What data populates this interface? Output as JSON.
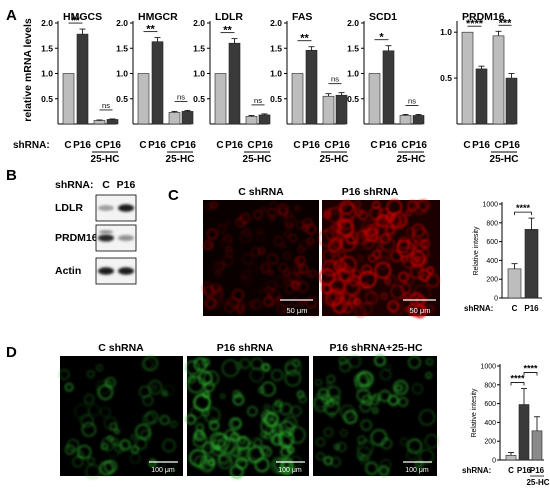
{
  "panel_labels": [
    "A",
    "B",
    "C",
    "D"
  ],
  "panel_a": {
    "ylabel": "relative mRNA levels",
    "row_label": "shRNA:",
    "bar_labels": [
      "C",
      "P16",
      "C",
      "P16"
    ],
    "treatment_label": "25-HC",
    "colors": {
      "control": "#bdbdbd",
      "knockdown": "#3a3a3a"
    }
  },
  "panel_b": {
    "row_label": "shRNA:",
    "lane_labels": [
      "C",
      "P16"
    ],
    "bands": [
      {
        "label": "LDLR",
        "intensity": [
          0.35,
          0.95
        ]
      },
      {
        "label": "PRDM16",
        "intensity": [
          0.9,
          0.4
        ]
      },
      {
        "label": "Actin",
        "intensity": [
          0.95,
          0.95
        ]
      }
    ]
  },
  "panel_c": {
    "image_titles": [
      "C shRNA",
      "P16 shRNA"
    ],
    "scale_bar": "50 μm",
    "stain_color": "#d40000"
  },
  "panel_d": {
    "image_titles": [
      "C shRNA",
      "P16 shRNA",
      "P16 shRNA+25-HC"
    ],
    "scale_bar": "100 μm",
    "stain_color": "#2fb52f"
  },
  "chart_data": [
    {
      "type": "bar",
      "panel": "A",
      "title": "HMGCS",
      "categories": [
        "C",
        "P16",
        "C 25-HC",
        "P16 25-HC"
      ],
      "values": [
        1.0,
        1.78,
        0.07,
        0.09
      ],
      "errors": [
        0,
        0.1,
        0.01,
        0.01
      ],
      "ylim": [
        0,
        2.0
      ],
      "yticks": [
        "0.5",
        "1.0",
        "1.5",
        "2.0"
      ],
      "sig": [
        {
          "pair": [
            0,
            1
          ],
          "label": "**"
        },
        {
          "pair": [
            2,
            3
          ],
          "label": "ns"
        }
      ]
    },
    {
      "type": "bar",
      "panel": "A",
      "title": "HMGCR",
      "categories": [
        "C",
        "P16",
        "C 25-HC",
        "P16 25-HC"
      ],
      "values": [
        1.0,
        1.63,
        0.23,
        0.25
      ],
      "errors": [
        0,
        0.08,
        0.02,
        0.02
      ],
      "ylim": [
        0,
        2.0
      ],
      "yticks": [
        "0.5",
        "1.0",
        "1.5",
        "2.0"
      ],
      "sig": [
        {
          "pair": [
            0,
            1
          ],
          "label": "**"
        },
        {
          "pair": [
            2,
            3
          ],
          "label": "ns"
        }
      ]
    },
    {
      "type": "bar",
      "panel": "A",
      "title": "LDLR",
      "categories": [
        "C",
        "P16",
        "C 25-HC",
        "P16 25-HC"
      ],
      "values": [
        1.0,
        1.6,
        0.15,
        0.18
      ],
      "errors": [
        0,
        0.09,
        0.02,
        0.02
      ],
      "ylim": [
        0,
        2.0
      ],
      "yticks": [
        "0.5",
        "1.0",
        "1.5",
        "2.0"
      ],
      "sig": [
        {
          "pair": [
            0,
            1
          ],
          "label": "**"
        },
        {
          "pair": [
            2,
            3
          ],
          "label": "ns"
        }
      ]
    },
    {
      "type": "bar",
      "panel": "A",
      "title": "FAS",
      "categories": [
        "C",
        "P16",
        "C 25-HC",
        "P16 25-HC"
      ],
      "values": [
        1.0,
        1.46,
        0.55,
        0.57
      ],
      "errors": [
        0,
        0.07,
        0.05,
        0.05
      ],
      "ylim": [
        0,
        2.0
      ],
      "yticks": [
        "0.5",
        "1.0",
        "1.5",
        "2.0"
      ],
      "sig": [
        {
          "pair": [
            0,
            1
          ],
          "label": "**"
        },
        {
          "pair": [
            2,
            3
          ],
          "label": "ns"
        }
      ]
    },
    {
      "type": "bar",
      "panel": "A",
      "title": "SCD1",
      "categories": [
        "C",
        "P16",
        "C 25-HC",
        "P16 25-HC"
      ],
      "values": [
        1.0,
        1.45,
        0.17,
        0.17
      ],
      "errors": [
        0,
        0.1,
        0.02,
        0.02
      ],
      "ylim": [
        0,
        2.0
      ],
      "yticks": [
        "0.5",
        "1.0",
        "1.5",
        "2.0"
      ],
      "sig": [
        {
          "pair": [
            0,
            1
          ],
          "label": "*"
        },
        {
          "pair": [
            2,
            3
          ],
          "label": "ns"
        }
      ]
    },
    {
      "type": "bar",
      "panel": "A",
      "title": "PRDM16",
      "categories": [
        "C",
        "P16",
        "C 25-HC",
        "P16 25-HC"
      ],
      "values": [
        1.0,
        0.6,
        0.96,
        0.5
      ],
      "errors": [
        0,
        0.03,
        0.05,
        0.05
      ],
      "ylim": [
        0,
        1.1
      ],
      "yticks": [
        "0.5",
        "1.0"
      ],
      "sig": [
        {
          "pair": [
            0,
            1
          ],
          "label": "****"
        },
        {
          "pair": [
            2,
            3
          ],
          "label": "***"
        }
      ]
    },
    {
      "type": "bar",
      "panel": "C",
      "ylabel": "Relative intesity",
      "categories": [
        "C",
        "P16"
      ],
      "values": [
        310,
        730
      ],
      "errors": [
        55,
        120
      ],
      "ylim": [
        0,
        1000
      ],
      "yticks": [
        "0",
        "200",
        "400",
        "600",
        "800",
        "1000"
      ],
      "sig": [
        {
          "pair": [
            0,
            1
          ],
          "label": "****"
        }
      ]
    },
    {
      "type": "bar",
      "panel": "D",
      "ylabel": "Relative intesity",
      "categories": [
        "C",
        "P16",
        "P16 25-HC"
      ],
      "values": [
        50,
        590,
        310
      ],
      "errors": [
        30,
        170,
        150
      ],
      "ylim": [
        0,
        1000
      ],
      "yticks": [
        "0",
        "200",
        "400",
        "600",
        "800",
        "1000"
      ],
      "sig": [
        {
          "pair": [
            0,
            1
          ],
          "label": "****"
        },
        {
          "pair": [
            1,
            2
          ],
          "label": "****"
        }
      ]
    }
  ]
}
